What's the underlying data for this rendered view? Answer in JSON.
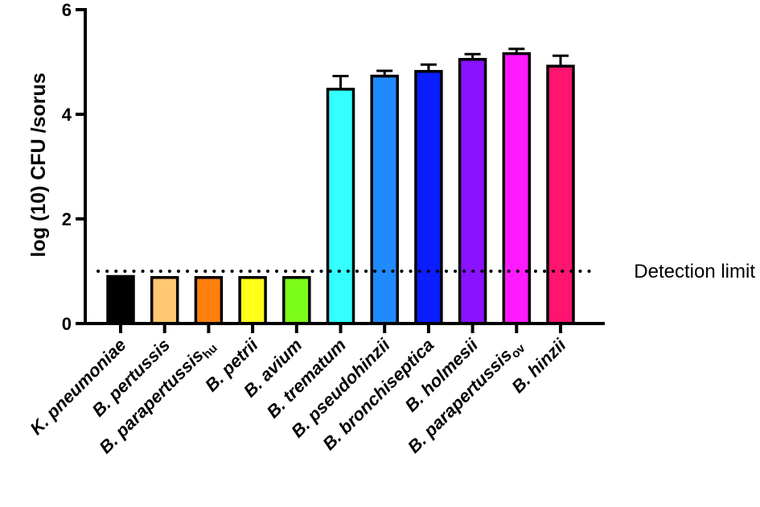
{
  "chart_data": {
    "type": "bar",
    "title": "",
    "xlabel": "",
    "ylabel": "log (10) CFU /sorus",
    "ylim": [
      0,
      6
    ],
    "yticks": [
      0,
      2,
      4,
      6
    ],
    "grid": false,
    "categories": [
      {
        "name": "K. pneumoniae"
      },
      {
        "name": "B. pertussis"
      },
      {
        "name": "B. parapertussis",
        "sub": "hu"
      },
      {
        "name": "B. petrii"
      },
      {
        "name": "B. avium"
      },
      {
        "name": "B. trematum"
      },
      {
        "name": "B. pseudohinzii"
      },
      {
        "name": "B. bronchiseptica"
      },
      {
        "name": "B. holmesii"
      },
      {
        "name": "B. parapertussis",
        "sub": "ov"
      },
      {
        "name": "B. hinzii"
      }
    ],
    "values": [
      0.9,
      0.88,
      0.88,
      0.88,
      0.88,
      4.48,
      4.73,
      4.82,
      5.05,
      5.16,
      4.92
    ],
    "errors": [
      0,
      0,
      0,
      0,
      0,
      0.25,
      0.1,
      0.13,
      0.1,
      0.09,
      0.2
    ],
    "colors": [
      "#000000",
      "#FFC870",
      "#FF7F0E",
      "#FFFF1A",
      "#7CFC1A",
      "#33FFFF",
      "#1F8BFF",
      "#0A1EFF",
      "#8A12FF",
      "#FF1AFF",
      "#FF1470"
    ],
    "reference_line": {
      "value": 1.0,
      "label": "Detection limit"
    }
  }
}
